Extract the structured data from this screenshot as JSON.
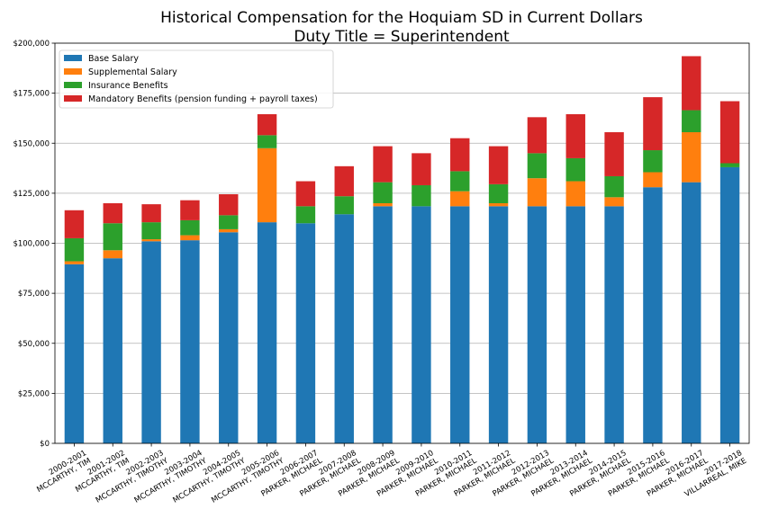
{
  "chart_data": {
    "type": "bar",
    "stacked": true,
    "title": "Historical Compensation for the Hoquiam SD in Current Dollars",
    "subtitle": "Duty Title = Superintendent",
    "xlabel": "",
    "ylabel": "",
    "ylim": [
      0,
      200000
    ],
    "y_ticks": [
      0,
      25000,
      50000,
      75000,
      100000,
      125000,
      150000,
      175000,
      200000
    ],
    "y_tick_labels": [
      "$0",
      "$25,000",
      "$50,000",
      "$75,000",
      "$100,000",
      "$125,000",
      "$150,000",
      "$175,000",
      "$200,000"
    ],
    "grid": "horizontal",
    "legend_position": "top-left",
    "categories": [
      [
        "2000-2001",
        "MCCARTHY, TIM"
      ],
      [
        "2001-2002",
        "MCCARTHY, TIM"
      ],
      [
        "2002-2003",
        "MCCARTHY, TIMOTHY"
      ],
      [
        "2003-2004",
        "MCCARTHY, TIMOTHY"
      ],
      [
        "2004-2005",
        "MCCARTHY, TIMOTHY"
      ],
      [
        "2005-2006",
        "MCCARTHY, TIMOTHY"
      ],
      [
        "2006-2007",
        "PARKER, MICHAEL"
      ],
      [
        "2007-2008",
        "PARKER, MICHAEL"
      ],
      [
        "2008-2009",
        "PARKER, MICHAEL"
      ],
      [
        "2009-2010",
        "PARKER, MICHAEL"
      ],
      [
        "2010-2011",
        "PARKER, MICHAEL"
      ],
      [
        "2011-2012",
        "PARKER, MICHAEL"
      ],
      [
        "2012-2013",
        "PARKER, MICHAEL"
      ],
      [
        "2013-2014",
        "PARKER, MICHAEL"
      ],
      [
        "2014-2015",
        "PARKER, MICHAEL"
      ],
      [
        "2015-2016",
        "PARKER, MICHAEL"
      ],
      [
        "2016-2017",
        "PARKER, MICHAEL"
      ],
      [
        "2017-2018",
        "VILLARREAL, MIKE"
      ]
    ],
    "series": [
      {
        "name": "Base Salary",
        "color": "#1f77b4",
        "values": [
          89500,
          92500,
          101000,
          101500,
          105500,
          110500,
          110000,
          114500,
          118500,
          118500,
          118500,
          118500,
          118500,
          118500,
          118500,
          128000,
          130500,
          138000
        ]
      },
      {
        "name": "Supplemental Salary",
        "color": "#ff7f0e",
        "values": [
          1500,
          4000,
          1000,
          2500,
          1500,
          37000,
          0,
          0,
          1500,
          0,
          7500,
          1500,
          14000,
          12500,
          4500,
          7500,
          25000,
          0
        ]
      },
      {
        "name": "Insurance Benefits",
        "color": "#2ca02c",
        "values": [
          11500,
          13500,
          8500,
          7500,
          7000,
          6500,
          8500,
          9000,
          10500,
          10500,
          10000,
          9500,
          12500,
          11500,
          10500,
          11000,
          11000,
          2000
        ]
      },
      {
        "name": "Mandatory Benefits (pension funding + payroll taxes)",
        "color": "#d62728",
        "values": [
          14000,
          10000,
          9000,
          10000,
          10500,
          10500,
          12500,
          15000,
          18000,
          16000,
          16500,
          19000,
          18000,
          22000,
          22000,
          26500,
          27000,
          31000
        ]
      }
    ]
  }
}
